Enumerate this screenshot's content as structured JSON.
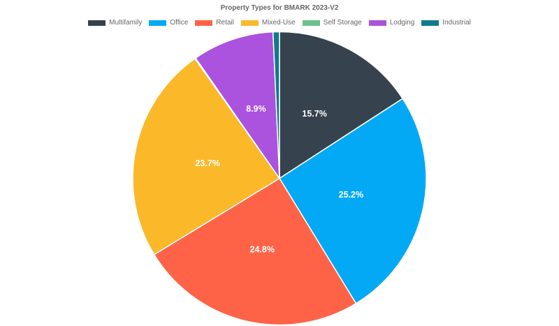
{
  "chart_data": {
    "type": "pie",
    "title": "Property Types for BMARK 2023-V2",
    "legend_position": "top",
    "categories": [
      "Multifamily",
      "Office",
      "Retail",
      "Mixed-Use",
      "Self Storage",
      "Lodging",
      "Industrial"
    ],
    "values": [
      15.7,
      25.2,
      24.8,
      23.7,
      0.1,
      8.9,
      0.7
    ],
    "labels": [
      "15.7%",
      "25.2%",
      "24.8%",
      "23.7%",
      "",
      "8.9%",
      ""
    ],
    "colors": [
      "#36424e",
      "#03a9f4",
      "#ff6347",
      "#fbb829",
      "#6cc28b",
      "#ab52de",
      "#117a8b"
    ]
  }
}
